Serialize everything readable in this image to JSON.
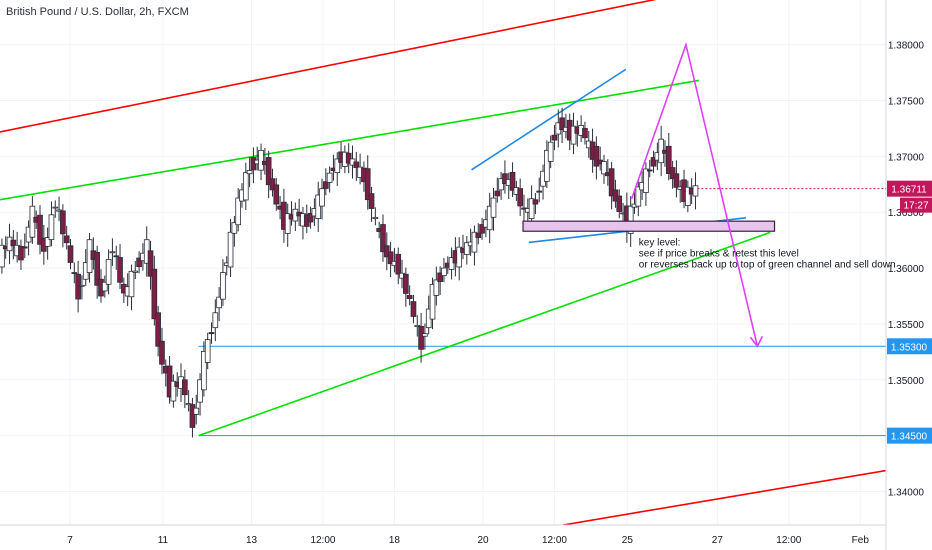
{
  "title": "British Pound / U.S. Dollar, 2h, FXCM",
  "chart_data": {
    "type": "candlestick",
    "ylim": [
      1.337,
      1.384
    ],
    "y_ticks": [
      1.34,
      1.345,
      1.35,
      1.355,
      1.36,
      1.365,
      1.37,
      1.375,
      1.38
    ],
    "y_tick_labels": [
      "1.34000",
      "1.34500",
      "1.35000",
      "1.35500",
      "1.36000",
      "1.36500",
      "1.37000",
      "1.37500",
      "1.38000"
    ],
    "x_ticks": [
      {
        "label": "7",
        "t": 4.9
      },
      {
        "label": "11",
        "t": 11.4
      },
      {
        "label": "13",
        "t": 17.6
      },
      {
        "label": "12:00",
        "t": 22.6
      },
      {
        "label": "18",
        "t": 27.6
      },
      {
        "label": "20",
        "t": 33.8
      },
      {
        "label": "12:00",
        "t": 38.8
      },
      {
        "label": "25",
        "t": 43.9
      },
      {
        "label": "27",
        "t": 50.2
      },
      {
        "label": "12:00",
        "t": 55.2
      },
      {
        "label": "Feb",
        "t": 60.2
      }
    ],
    "x_range": [
      0,
      62
    ],
    "series": [
      {
        "points": [
          [
            0.0,
            1.361
          ],
          [
            0.8,
            1.3625
          ],
          [
            1.6,
            1.361
          ],
          [
            2.4,
            1.365
          ],
          [
            3.2,
            1.3615
          ],
          [
            4.0,
            1.366
          ],
          [
            4.8,
            1.362
          ],
          [
            5.6,
            1.3575
          ],
          [
            6.4,
            1.362
          ],
          [
            7.2,
            1.3575
          ],
          [
            8.0,
            1.362
          ],
          [
            8.8,
            1.3575
          ],
          [
            9.6,
            1.36
          ],
          [
            10.4,
            1.362
          ],
          [
            11.2,
            1.353
          ],
          [
            12.0,
            1.349
          ],
          [
            12.8,
            1.35
          ],
          [
            13.6,
            1.346
          ],
          [
            14.4,
            1.352
          ],
          [
            15.2,
            1.356
          ],
          [
            16.0,
            1.361
          ],
          [
            16.8,
            1.366
          ],
          [
            17.6,
            1.369
          ],
          [
            18.4,
            1.37
          ],
          [
            19.2,
            1.367
          ],
          [
            20.0,
            1.364
          ],
          [
            20.8,
            1.365
          ],
          [
            21.6,
            1.364
          ],
          [
            22.4,
            1.366
          ],
          [
            23.2,
            1.3685
          ],
          [
            24.0,
            1.37
          ],
          [
            24.8,
            1.3695
          ],
          [
            25.6,
            1.368
          ],
          [
            26.4,
            1.364
          ],
          [
            27.2,
            1.361
          ],
          [
            28.0,
            1.36
          ],
          [
            28.8,
            1.357
          ],
          [
            29.6,
            1.353
          ],
          [
            30.4,
            1.358
          ],
          [
            31.2,
            1.36
          ],
          [
            32.0,
            1.361
          ],
          [
            32.8,
            1.362
          ],
          [
            33.6,
            1.363
          ],
          [
            34.4,
            1.365
          ],
          [
            35.2,
            1.368
          ],
          [
            36.0,
            1.3675
          ],
          [
            36.8,
            1.365
          ],
          [
            37.6,
            1.366
          ],
          [
            38.4,
            1.37
          ],
          [
            39.2,
            1.373
          ],
          [
            40.0,
            1.372
          ],
          [
            40.8,
            1.3725
          ],
          [
            41.6,
            1.37
          ],
          [
            42.4,
            1.369
          ],
          [
            43.2,
            1.366
          ],
          [
            44.0,
            1.364
          ],
          [
            44.8,
            1.367
          ],
          [
            45.6,
            1.369
          ],
          [
            46.4,
            1.371
          ],
          [
            47.2,
            1.368
          ],
          [
            48.0,
            1.3665
          ],
          [
            48.8,
            1.3671
          ]
        ]
      }
    ],
    "current_price": {
      "label": "1.36711",
      "countdown": "17:27",
      "value": 1.36711
    },
    "horizontal_levels": [
      {
        "value": 1.353,
        "label": "1.35300",
        "color": "#2196f3"
      },
      {
        "value": 1.345,
        "label": "1.34500",
        "color": "#2196f3"
      }
    ],
    "trendlines": [
      {
        "color": "#ff0000",
        "from": [
          -1.5,
          1.3718
        ],
        "to": [
          47.6,
          1.3845
        ]
      },
      {
        "color": "#ff0000",
        "from": [
          39.4,
          1.337
        ],
        "to": [
          63.5,
          1.3422
        ]
      },
      {
        "color": "#00e000",
        "from": [
          -1.5,
          1.3658
        ],
        "to": [
          48.9,
          1.3768
        ]
      },
      {
        "color": "#00e000",
        "from": [
          13.9,
          1.345
        ],
        "to": [
          53.9,
          1.3632
        ]
      },
      {
        "color": "#1e88e5",
        "from": [
          33.0,
          1.3688
        ],
        "to": [
          43.8,
          1.3778
        ]
      },
      {
        "color": "#1e88e5",
        "from": [
          37.0,
          1.3623
        ],
        "to": [
          52.2,
          1.3645
        ]
      }
    ],
    "rectangle": {
      "t": [
        36.6,
        54.2
      ],
      "y": [
        1.3633,
        1.3642
      ],
      "fill": "#e7c4ec",
      "stroke": "#3a1d46"
    },
    "zigzag": {
      "color": "#e040fb",
      "points": [
        [
          44.2,
          1.3662
        ],
        [
          48.0,
          1.38
        ],
        [
          53.0,
          1.353
        ]
      ]
    },
    "annotation": {
      "lines": [
        "key level:",
        "see if price breaks & retest this level",
        "or reverses back up to top of green channel and sell down"
      ],
      "t": 44.7,
      "y": 1.362
    }
  }
}
